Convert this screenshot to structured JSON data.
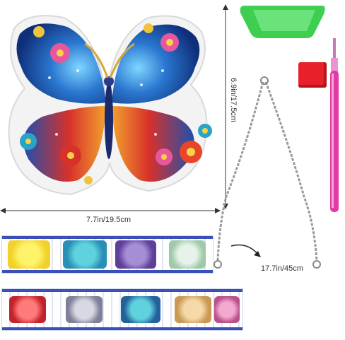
{
  "dimensions": {
    "width_label": "7.7in/19.5cm",
    "height_label": "6.9in/17.5cm",
    "chain_label": "17.7in/45cm"
  },
  "items": {
    "butterfly": "butterfly-diamond-art-icon",
    "tray": "rhinestone-tray-icon",
    "wax": "wax-pad-icon",
    "pen": "drill-pen-icon",
    "chain": "metal-chain-icon",
    "bags_top": [
      "yellow-rhinestones-bag-icon",
      "teal-rhinestones-bag-icon",
      "purple-rhinestones-bag-icon",
      "clear-rhinestones-bag-icon"
    ],
    "bags_bottom": [
      "red-rhinestones-bag-icon",
      "silver-rhinestones-bag-icon",
      "blue-rhinestones-bag-icon",
      "gold-rhinestones-bag-icon",
      "pink-rhinestones-bag-icon"
    ]
  },
  "colors": {
    "tray_green": "#47d65a",
    "pen_pink": "#e23ba6",
    "wax_red": "#e8202a",
    "butterfly_blue": "#1f5fbf",
    "butterfly_red": "#d8312a"
  }
}
